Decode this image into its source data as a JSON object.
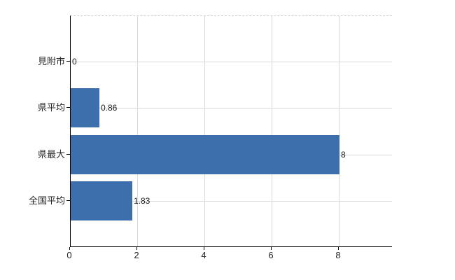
{
  "chart_data": {
    "type": "bar",
    "orientation": "horizontal",
    "title": "",
    "xlabel": "",
    "ylabel": "",
    "categories": [
      "見附市",
      "県平均",
      "県最大",
      "全国平均"
    ],
    "values": [
      0,
      0.86,
      8,
      1.83
    ],
    "value_labels": [
      "0",
      "0.86",
      "8",
      "1.83"
    ],
    "x_ticks": [
      0,
      2,
      4,
      6,
      8
    ],
    "x_tick_labels": [
      "0",
      "2",
      "4",
      "6",
      "8"
    ],
    "xlim": [
      0,
      9.58
    ],
    "grid": true,
    "legend": false,
    "colors": {
      "bar": "#3d6fad",
      "grid": "#d9d9d9",
      "axis": "#000000",
      "text": "#262626",
      "value_text": "#1a1a1a",
      "top_border": "#d5cdcd",
      "background": "#ffffff"
    }
  }
}
